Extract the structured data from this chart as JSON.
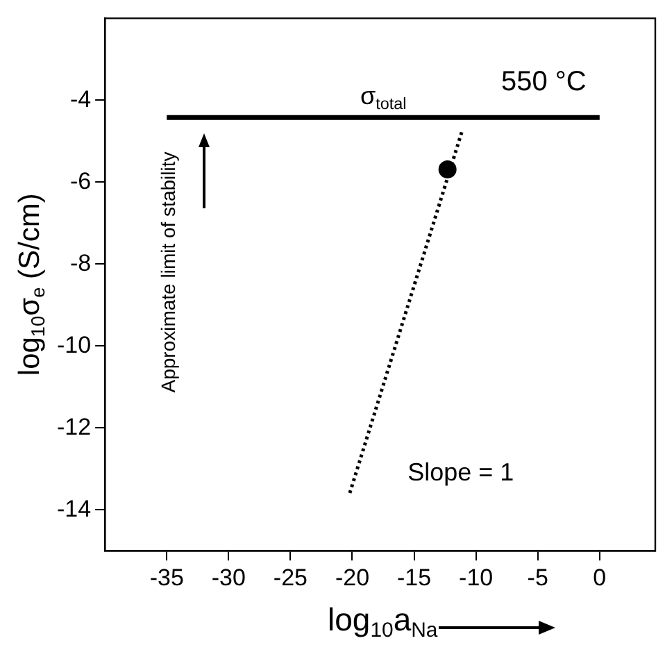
{
  "chart_data": {
    "type": "line",
    "xlabel": "log$_{10}$a$_{Na}$",
    "ylabel": "log$_{10}$σ$_{e}$ (S/cm)",
    "xlim": [
      -40,
      4.5
    ],
    "xticks": [
      -35,
      -30,
      -25,
      -20,
      -15,
      -10,
      -5,
      0
    ],
    "ylim": [
      -15,
      -2
    ],
    "yticks": [
      -14,
      -12,
      -10,
      -8,
      -6,
      -4
    ],
    "series": [
      {
        "color": "#000000",
        "x": [
          -35,
          0
        ],
        "values": [
          -4.42,
          -4.42
        ],
        "line_style": "solid",
        "marker": "none"
      },
      {
        "color": "#000000",
        "x": [
          -20.2,
          -11.1
        ],
        "values": [
          -13.59,
          -4.73
        ],
        "line_style": "dotted",
        "marker": "none"
      },
      {
        "type": "scatter",
        "color": "#000000",
        "x": [
          -12.3
        ],
        "values": [
          -5.69
        ],
        "marker": "circle"
      }
    ],
    "annotations": [
      {
        "text": "σ$_{total}$",
        "x": -17.5,
        "y": -4.42
      },
      "Slope = 1",
      "550 °C",
      "Approximate limit of stability"
    ]
  }
}
